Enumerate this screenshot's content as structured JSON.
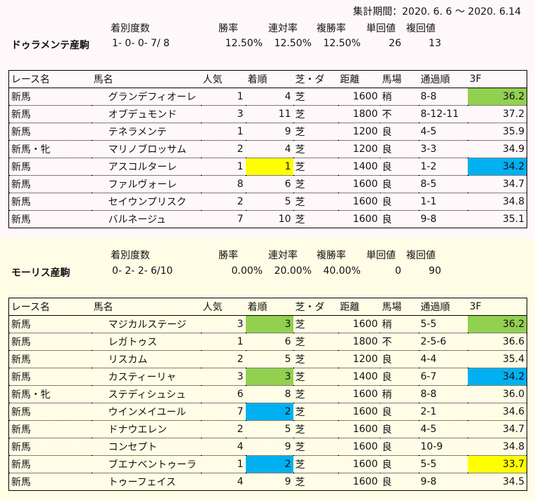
{
  "period": "集計期間：2020. 6. 6 ～ 2020. 6.14",
  "summary_headers": [
    "着別度数",
    "勝率",
    "連対率",
    "複勝率",
    "単回値",
    "複回値"
  ],
  "table_headers": [
    "レース名",
    "馬名",
    "人気",
    "着順",
    "芝・ダ",
    "距離",
    "馬場",
    "通過順",
    "3F"
  ],
  "colors": {
    "yellow": "#ffff00",
    "green": "#92d050",
    "blue": "#00b0f0"
  },
  "sires": [
    {
      "name": "ドゥラメンテ産駒",
      "record": "1- 0- 0- 7/ 8",
      "win_rate": "12.50%",
      "quinella_rate": "12.50%",
      "place_rate": "12.50%",
      "win_return": "26",
      "place_return": "13",
      "rows": [
        {
          "race": "新馬",
          "horse": "グランデフィオーレ",
          "pop": "1",
          "fin": "4",
          "surf": "芝",
          "dist": "1600",
          "cond": "稍",
          "pass": "8-8",
          "f3": "36.2",
          "f3_hl": "green"
        },
        {
          "race": "新馬",
          "horse": "オブデュモンド",
          "pop": "3",
          "fin": "11",
          "surf": "芝",
          "dist": "1800",
          "cond": "不",
          "pass": "8-12-11",
          "f3": "37.2"
        },
        {
          "race": "新馬",
          "horse": "テネラメンテ",
          "pop": "1",
          "fin": "9",
          "surf": "芝",
          "dist": "1200",
          "cond": "良",
          "pass": "4-5",
          "f3": "35.9"
        },
        {
          "race": "新馬・牝",
          "horse": "マリノブロッサム",
          "pop": "2",
          "fin": "4",
          "surf": "芝",
          "dist": "1200",
          "cond": "良",
          "pass": "3-3",
          "f3": "34.9"
        },
        {
          "race": "新馬",
          "horse": "アスコルターレ",
          "pop": "1",
          "fin": "1",
          "fin_hl": "yellow",
          "surf": "芝",
          "dist": "1400",
          "cond": "良",
          "pass": "1-2",
          "f3": "34.2",
          "f3_hl": "blue"
        },
        {
          "race": "新馬",
          "horse": "ファルヴォーレ",
          "pop": "8",
          "fin": "6",
          "surf": "芝",
          "dist": "1600",
          "cond": "良",
          "pass": "8-5",
          "f3": "34.7"
        },
        {
          "race": "新馬",
          "horse": "セイウンプリスク",
          "pop": "2",
          "fin": "5",
          "surf": "芝",
          "dist": "1600",
          "cond": "良",
          "pass": "1-1",
          "f3": "34.8"
        },
        {
          "race": "新馬",
          "horse": "バルネージュ",
          "pop": "7",
          "fin": "10",
          "surf": "芝",
          "dist": "1600",
          "cond": "良",
          "pass": "9-8",
          "f3": "35.1"
        }
      ]
    },
    {
      "name": "モーリス産駒",
      "record": "0- 2- 2- 6/10",
      "win_rate": "0.00%",
      "quinella_rate": "20.00%",
      "place_rate": "40.00%",
      "win_return": "0",
      "place_return": "90",
      "rows": [
        {
          "race": "新馬",
          "horse": "マジカルステージ",
          "pop": "3",
          "fin": "3",
          "fin_hl": "green",
          "surf": "芝",
          "dist": "1600",
          "cond": "稍",
          "pass": "5-5",
          "f3": "36.2",
          "f3_hl": "green"
        },
        {
          "race": "新馬",
          "horse": "レガトゥス",
          "pop": "1",
          "fin": "6",
          "surf": "芝",
          "dist": "1800",
          "cond": "不",
          "pass": "2-5-6",
          "f3": "36.6"
        },
        {
          "race": "新馬",
          "horse": "リスカム",
          "pop": "2",
          "fin": "5",
          "surf": "芝",
          "dist": "1200",
          "cond": "良",
          "pass": "4-4",
          "f3": "35.4"
        },
        {
          "race": "新馬",
          "horse": "カスティーリャ",
          "pop": "3",
          "fin": "3",
          "fin_hl": "green",
          "surf": "芝",
          "dist": "1400",
          "cond": "良",
          "pass": "6-7",
          "f3": "34.2",
          "f3_hl": "blue"
        },
        {
          "race": "新馬・牝",
          "horse": "ステディシュシュ",
          "pop": "6",
          "fin": "8",
          "surf": "芝",
          "dist": "1600",
          "cond": "稍",
          "pass": "8-8",
          "f3": "36.0"
        },
        {
          "race": "新馬",
          "horse": "ウインメイユール",
          "pop": "7",
          "fin": "2",
          "fin_hl": "blue",
          "surf": "芝",
          "dist": "1600",
          "cond": "良",
          "pass": "2-1",
          "f3": "34.6"
        },
        {
          "race": "新馬",
          "horse": "ドナウエレン",
          "pop": "2",
          "fin": "5",
          "surf": "芝",
          "dist": "1600",
          "cond": "良",
          "pass": "4-5",
          "f3": "34.7"
        },
        {
          "race": "新馬",
          "horse": "コンセプト",
          "pop": "4",
          "fin": "9",
          "surf": "芝",
          "dist": "1600",
          "cond": "良",
          "pass": "10-9",
          "f3": "34.8"
        },
        {
          "race": "新馬",
          "horse": "ブエナベントゥーラ",
          "pop": "1",
          "fin": "2",
          "fin_hl": "blue",
          "surf": "芝",
          "dist": "1600",
          "cond": "良",
          "pass": "5-5",
          "f3": "33.7",
          "f3_hl": "yellow"
        },
        {
          "race": "新馬",
          "horse": "トゥーフェイス",
          "pop": "4",
          "fin": "9",
          "surf": "芝",
          "dist": "1600",
          "cond": "良",
          "pass": "9-8",
          "f3": "34.5"
        }
      ]
    }
  ]
}
